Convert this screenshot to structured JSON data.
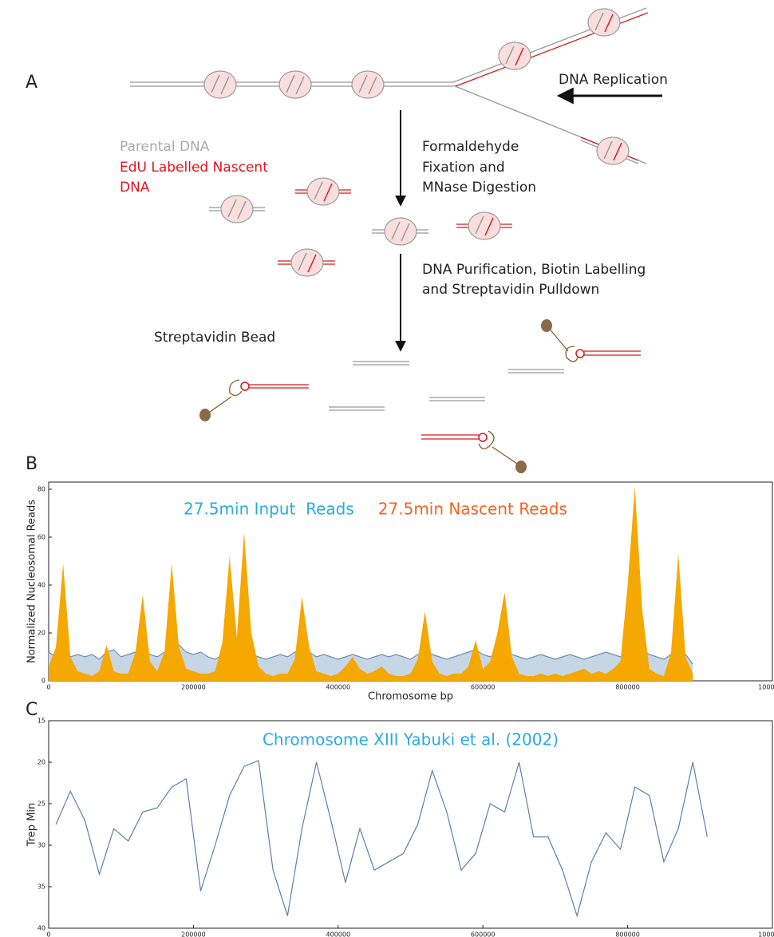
{
  "panel_labels": [
    "A",
    "B",
    "C"
  ],
  "diagram": {
    "fork_label": "DNA Replication",
    "legend": {
      "parental": "Parental DNA",
      "nascent": [
        "EdU Labelled Nascent",
        "DNA"
      ]
    },
    "step1": [
      "Formaldehyde",
      "Fixation and",
      "MNase Digestion"
    ],
    "step2": [
      "DNA Purification, Biotin Labelling",
      "and Streptavidin Pulldown"
    ],
    "bead_label": "Streptavidin Bead"
  },
  "chart_data": [
    {
      "type": "area",
      "xlabel": "Chromosome bp",
      "ylabel": "Normalized Nucleosomal Reads",
      "x": [
        0,
        10000,
        20000,
        30000,
        40000,
        50000,
        60000,
        70000,
        80000,
        90000,
        100000,
        110000,
        120000,
        130000,
        140000,
        150000,
        160000,
        170000,
        180000,
        190000,
        200000,
        210000,
        220000,
        230000,
        240000,
        250000,
        260000,
        270000,
        280000,
        290000,
        300000,
        310000,
        320000,
        330000,
        340000,
        350000,
        360000,
        370000,
        380000,
        390000,
        400000,
        410000,
        420000,
        430000,
        440000,
        450000,
        460000,
        470000,
        480000,
        490000,
        500000,
        510000,
        520000,
        530000,
        540000,
        550000,
        560000,
        570000,
        580000,
        590000,
        600000,
        610000,
        620000,
        630000,
        640000,
        650000,
        660000,
        670000,
        680000,
        690000,
        700000,
        710000,
        720000,
        730000,
        740000,
        750000,
        760000,
        770000,
        780000,
        790000,
        800000,
        810000,
        820000,
        830000,
        840000,
        850000,
        860000,
        870000,
        880000,
        890000
      ],
      "series": [
        {
          "name": "27.5min Input  Reads",
          "color": "#c7d6e4",
          "edge_color": "#6f8fae",
          "label_color": "#29abe2",
          "values": [
            12,
            10,
            11,
            10,
            11,
            10,
            11,
            9,
            12,
            13,
            10,
            11,
            12,
            13,
            11,
            10,
            12,
            14,
            15,
            12,
            11,
            12,
            10,
            9,
            11,
            13,
            12,
            13,
            11,
            10,
            9,
            10,
            11,
            10,
            12,
            13,
            12,
            10,
            11,
            10,
            9,
            10,
            11,
            10,
            9,
            10,
            11,
            10,
            11,
            10,
            9,
            11,
            12,
            11,
            10,
            9,
            10,
            11,
            12,
            13,
            11,
            10,
            12,
            13,
            11,
            10,
            9,
            10,
            11,
            10,
            9,
            10,
            11,
            10,
            9,
            10,
            11,
            12,
            11,
            10,
            12,
            14,
            13,
            11,
            10,
            9,
            11,
            13,
            11,
            7
          ]
        },
        {
          "name": "27.5min Nascent Reads",
          "color": "#f5a800",
          "label_color": "#f26522",
          "values": [
            6,
            14,
            49,
            10,
            4,
            3,
            2,
            4,
            15,
            4,
            3,
            3,
            12,
            36,
            8,
            4,
            12,
            49,
            14,
            5,
            4,
            3,
            3,
            4,
            16,
            52,
            18,
            62,
            20,
            6,
            3,
            2,
            3,
            3,
            9,
            35,
            14,
            4,
            3,
            2,
            3,
            6,
            10,
            5,
            3,
            4,
            6,
            3,
            2,
            2,
            3,
            9,
            29,
            8,
            3,
            2,
            3,
            3,
            6,
            17,
            5,
            8,
            20,
            37,
            10,
            3,
            2,
            2,
            3,
            2,
            3,
            2,
            3,
            4,
            5,
            3,
            4,
            3,
            5,
            8,
            40,
            81,
            30,
            5,
            3,
            2,
            12,
            53,
            10,
            3
          ]
        }
      ],
      "xlim": [
        0,
        1000000
      ],
      "xticks": [
        0,
        200000,
        400000,
        600000,
        800000,
        1000000
      ],
      "ylim": [
        0,
        83
      ],
      "yticks": [
        0,
        20,
        40,
        60,
        80
      ],
      "legend": "top"
    },
    {
      "type": "line",
      "title": "Chromosome XIII Yabuki et al. (2002)",
      "title_color": "#29abe2",
      "xlabel": "Chromosome bp",
      "ylabel": "Trep Min",
      "x": [
        10000,
        30000,
        50000,
        70000,
        90000,
        110000,
        130000,
        150000,
        170000,
        190000,
        210000,
        230000,
        250000,
        270000,
        290000,
        310000,
        330000,
        350000,
        370000,
        390000,
        410000,
        430000,
        450000,
        470000,
        490000,
        510000,
        530000,
        550000,
        570000,
        590000,
        610000,
        630000,
        650000,
        670000,
        690000,
        710000,
        730000,
        750000,
        770000,
        790000,
        810000,
        830000,
        850000,
        870000,
        890000,
        910000
      ],
      "series": [
        {
          "name": "Trep",
          "color": "#5b7fae",
          "values": [
            27.5,
            23.5,
            27,
            33.5,
            28,
            29.5,
            26,
            25.5,
            23,
            22,
            35.5,
            30,
            24,
            20.5,
            19.8,
            33,
            38.5,
            28,
            20,
            27,
            34.5,
            28,
            33,
            32,
            31,
            27.5,
            21,
            26,
            33,
            31,
            25,
            26,
            20,
            29,
            29,
            33,
            38.5,
            32,
            28.5,
            30.5,
            23,
            24,
            32,
            28,
            20,
            29
          ]
        }
      ],
      "xlim": [
        0,
        1000000
      ],
      "xticks": [
        0,
        200000,
        400000,
        600000,
        800000,
        1000000
      ],
      "ylim": [
        15,
        40
      ],
      "yticks": [
        15,
        20,
        25,
        30,
        35,
        40
      ],
      "y_inverted": true
    }
  ]
}
